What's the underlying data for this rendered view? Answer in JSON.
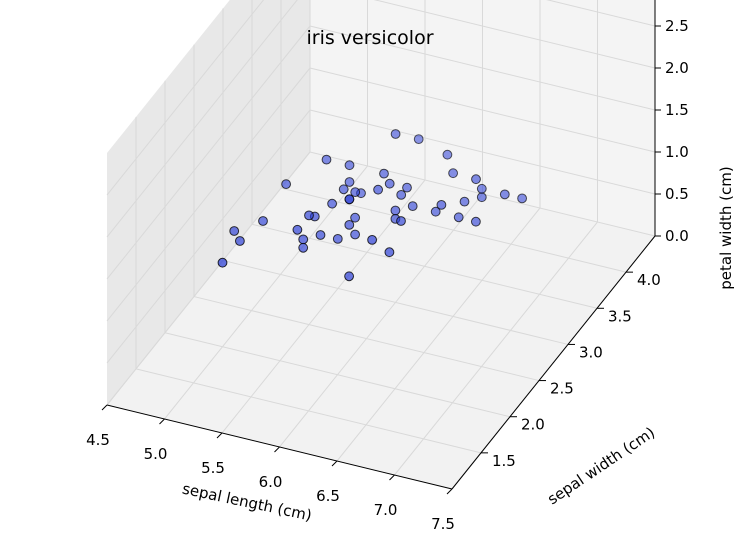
{
  "chart_data": {
    "type": "scatter",
    "title": "iris versicolor",
    "xlabel": "sepal length (cm)",
    "ylabel": "sepal width (cm)",
    "zlabel": "petal width (cm)",
    "xlim": [
      4.5,
      7.5
    ],
    "ylim": [
      1.0,
      4.5
    ],
    "zlim": [
      0.0,
      3.0
    ],
    "x_ticks": [
      "4.5",
      "5.0",
      "5.5",
      "6.0",
      "6.5",
      "7.0",
      "7.5"
    ],
    "y_ticks": [
      "1.5",
      "2.0",
      "2.5",
      "3.0",
      "3.5",
      "4.0"
    ],
    "z_ticks": [
      "0.0",
      "0.5",
      "1.0",
      "1.5",
      "2.0",
      "2.5"
    ],
    "grid": true,
    "marker_color": "#2a3dd6",
    "points": {
      "x": [
        7.0,
        6.4,
        6.9,
        5.5,
        6.5,
        5.7,
        6.3,
        4.9,
        6.6,
        5.2,
        5.0,
        5.9,
        6.0,
        6.1,
        5.6,
        6.7,
        5.6,
        5.8,
        6.2,
        5.6,
        5.9,
        6.1,
        6.3,
        6.1,
        6.4,
        6.6,
        6.8,
        6.7,
        6.0,
        5.7,
        5.5,
        5.5,
        5.8,
        6.0,
        5.4,
        6.0,
        6.7,
        6.3,
        5.6,
        5.5,
        5.5,
        6.1,
        5.8,
        5.0,
        5.6,
        5.7,
        5.7,
        6.2,
        5.1,
        5.7
      ],
      "y": [
        3.2,
        3.2,
        3.1,
        2.3,
        2.8,
        2.8,
        3.3,
        2.4,
        2.9,
        2.7,
        2.0,
        3.0,
        2.2,
        2.9,
        2.9,
        3.1,
        3.0,
        2.7,
        2.2,
        2.5,
        3.2,
        2.8,
        2.5,
        2.8,
        2.9,
        3.0,
        2.8,
        3.0,
        2.9,
        2.6,
        2.4,
        2.4,
        2.7,
        2.7,
        3.0,
        3.4,
        3.1,
        2.3,
        3.0,
        2.5,
        2.6,
        3.0,
        2.6,
        2.3,
        2.7,
        3.0,
        2.9,
        2.9,
        2.5,
        2.8
      ],
      "z": [
        1.4,
        1.5,
        1.5,
        1.3,
        1.5,
        1.3,
        1.6,
        1.0,
        1.3,
        1.4,
        1.0,
        1.5,
        1.0,
        1.4,
        1.3,
        1.4,
        1.5,
        1.0,
        1.5,
        1.1,
        1.8,
        1.3,
        1.5,
        1.2,
        1.3,
        1.4,
        1.4,
        1.7,
        1.5,
        1.0,
        1.1,
        1.0,
        1.2,
        1.6,
        1.5,
        1.6,
        1.5,
        1.3,
        1.3,
        1.3,
        1.2,
        1.4,
        1.2,
        1.0,
        1.3,
        1.2,
        1.3,
        1.3,
        1.1,
        1.3
      ]
    }
  }
}
